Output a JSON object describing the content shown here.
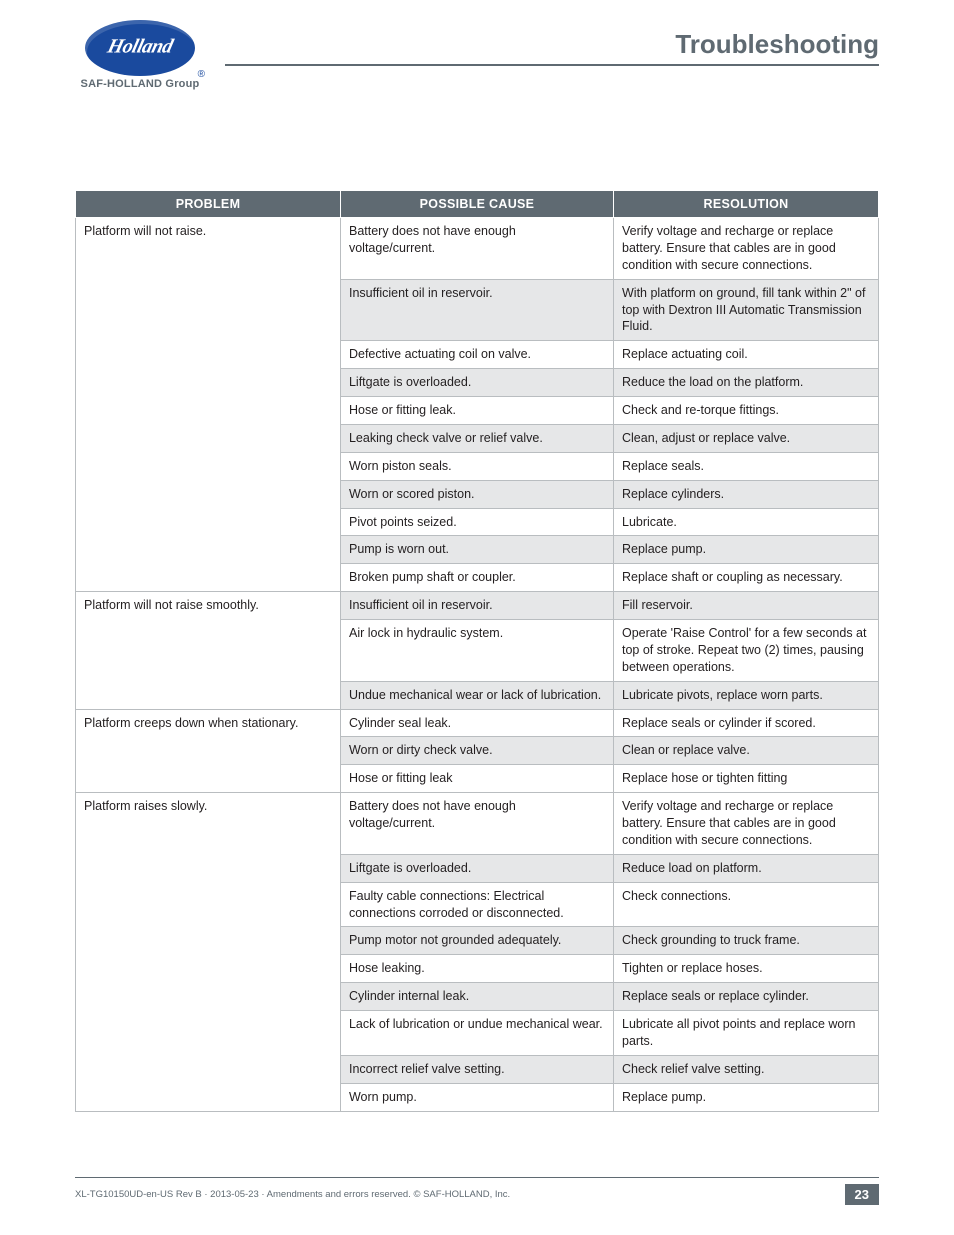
{
  "header": {
    "logo_script": "Holland",
    "subbrand": "SAF-HOLLAND Group",
    "page_title": "Troubleshooting"
  },
  "table": {
    "columns": [
      "PROBLEM",
      "POSSIBLE CAUSE",
      "RESOLUTION"
    ],
    "col_widths_pct": [
      33,
      34,
      33
    ],
    "header_bg": "#5f6a72",
    "header_fg": "#ffffff",
    "border_color": "#b9bdc0",
    "shade_bg": "#e6e7e8",
    "font_size_pt": 9.5,
    "groups": [
      {
        "problem": "Platform will not raise.",
        "rows": [
          {
            "cause": "Battery does not have enough voltage/current.",
            "resolution": "Verify voltage and recharge or replace battery. Ensure that cables are in good condition with secure connections.",
            "shaded": false
          },
          {
            "cause": "Insufficient oil in reservoir.",
            "resolution": "With platform on ground, fill tank within 2\" of top with Dextron III Automatic Transmission Fluid.",
            "shaded": true
          },
          {
            "cause": "Defective actuating coil on valve.",
            "resolution": "Replace actuating coil.",
            "shaded": false
          },
          {
            "cause": "Liftgate is overloaded.",
            "resolution": "Reduce the load on the platform.",
            "shaded": true
          },
          {
            "cause": "Hose or fitting leak.",
            "resolution": "Check and re-torque fittings.",
            "shaded": false
          },
          {
            "cause": "Leaking check valve or relief valve.",
            "resolution": "Clean, adjust or replace valve.",
            "shaded": true
          },
          {
            "cause": "Worn piston seals.",
            "resolution": "Replace seals.",
            "shaded": false
          },
          {
            "cause": "Worn or scored piston.",
            "resolution": "Replace cylinders.",
            "shaded": true
          },
          {
            "cause": "Pivot points seized.",
            "resolution": "Lubricate.",
            "shaded": false
          },
          {
            "cause": "Pump is worn out.",
            "resolution": "Replace pump.",
            "shaded": true
          },
          {
            "cause": "Broken pump shaft or coupler.",
            "resolution": "Replace shaft or coupling as necessary.",
            "shaded": false
          }
        ]
      },
      {
        "problem": "Platform will not raise smoothly.",
        "rows": [
          {
            "cause": "Insufficient oil in reservoir.",
            "resolution": "Fill reservoir.",
            "shaded": true
          },
          {
            "cause": "Air lock in hydraulic system.",
            "resolution": "Operate 'Raise Control' for a few seconds at top of stroke. Repeat two (2) times, pausing between operations.",
            "shaded": false
          },
          {
            "cause": "Undue mechanical wear or lack of lubrication.",
            "resolution": "Lubricate pivots, replace worn parts.",
            "shaded": true
          }
        ]
      },
      {
        "problem": "Platform creeps down when stationary.",
        "rows": [
          {
            "cause": "Cylinder seal leak.",
            "resolution": "Replace seals or cylinder if scored.",
            "shaded": false
          },
          {
            "cause": "Worn or dirty check valve.",
            "resolution": "Clean or replace valve.",
            "shaded": true
          },
          {
            "cause": "Hose or fitting leak",
            "resolution": "Replace hose or tighten fitting",
            "shaded": false
          }
        ]
      },
      {
        "problem": "Platform raises slowly.",
        "rows": [
          {
            "cause": "Battery does not have enough voltage/current.",
            "resolution": "Verify voltage and recharge or replace battery. Ensure that cables are in good condition with secure connections.",
            "shaded": false
          },
          {
            "cause": "Liftgate is overloaded.",
            "resolution": "Reduce load on platform.",
            "shaded": true
          },
          {
            "cause": "Faulty cable connections: Electrical connections corroded or disconnected.",
            "resolution": "Check connections.",
            "shaded": false
          },
          {
            "cause": "Pump motor not grounded adequately.",
            "resolution": "Check grounding to truck frame.",
            "shaded": true
          },
          {
            "cause": "Hose leaking.",
            "resolution": "Tighten or replace hoses.",
            "shaded": false
          },
          {
            "cause": "Cylinder internal leak.",
            "resolution": "Replace seals or replace cylinder.",
            "shaded": true
          },
          {
            "cause": "Lack of lubrication or undue mechanical wear.",
            "resolution": "Lubricate all pivot points and replace worn parts.",
            "shaded": false
          },
          {
            "cause": "Incorrect relief valve setting.",
            "resolution": "Check relief valve setting.",
            "shaded": true
          },
          {
            "cause": "Worn pump.",
            "resolution": "Replace pump.",
            "shaded": false
          }
        ]
      }
    ]
  },
  "footer": {
    "doc_ref": "XL-TG10150UD-en-US Rev B · 2013-05-23 · Amendments and errors reserved. © SAF-HOLLAND, Inc.",
    "page_number": "23"
  },
  "colors": {
    "brand_blue": "#1a4a9e",
    "brand_gray": "#5f6a72",
    "text": "#231f20",
    "page_bg": "#ffffff"
  }
}
